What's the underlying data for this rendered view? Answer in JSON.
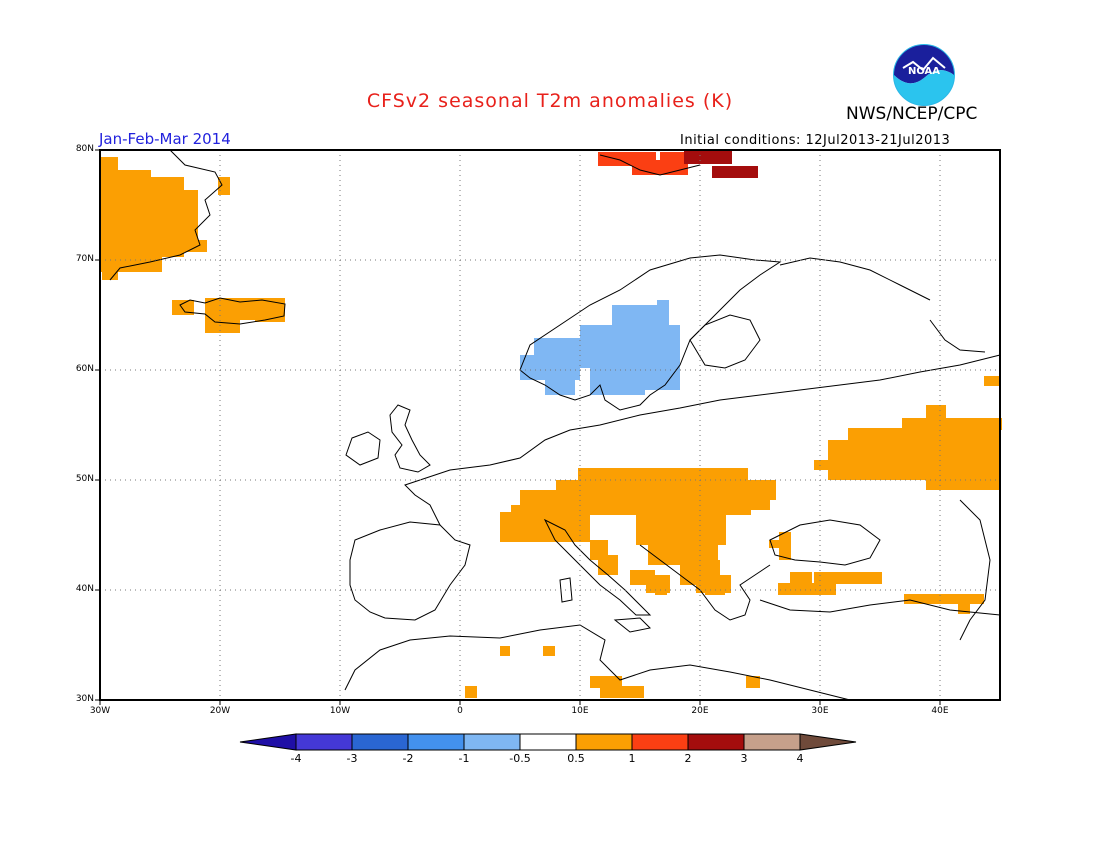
{
  "title": "CFSv2 seasonal T2m anomalies (K)",
  "agency": "NWS/NCEP/CPC",
  "logo_text": "NOAA",
  "period": "Jan-Feb-Mar 2014",
  "initial_conditions": "Initial conditions: 12Jul2013-21Jul2013",
  "map": {
    "lon_range": [
      -30,
      45
    ],
    "lat_range": [
      30,
      80
    ],
    "grid": true,
    "lat_labels": [
      "80N",
      "70N",
      "60N",
      "50N",
      "40N",
      "30N"
    ],
    "lon_labels": [
      "30W",
      "20W",
      "10W",
      "0",
      "10E",
      "20E",
      "30E",
      "40E"
    ],
    "cell_deg": 2.5
  },
  "colorbar": {
    "ticks": [
      "-4",
      "-3",
      "-2",
      "-1",
      "-0.5",
      "0.5",
      "1",
      "2",
      "3",
      "4"
    ],
    "colors": [
      "#1f0fa6",
      "#4438d6",
      "#2a66d2",
      "#4391ee",
      "#7fb7f3",
      "#ffffff",
      "#fb9f03",
      "#fb3f13",
      "#a40d0d",
      "#c6a08b",
      "#6f4a3a"
    ]
  },
  "anomaly_regions": [
    {
      "name": "Greenland east",
      "level": "0.5-1",
      "color": "#fb9f03"
    },
    {
      "name": "Iceland",
      "level": "0.5-1",
      "color": "#fb9f03"
    },
    {
      "name": "Svalbard",
      "level": "1-2",
      "color": "#fb3f13"
    },
    {
      "name": "Svalbard east",
      "level": "2-3",
      "color": "#a40d0d"
    },
    {
      "name": "Scandinavia",
      "level": "-1--0.5",
      "color": "#7fb7f3"
    },
    {
      "name": "Central Europe & Balkans",
      "level": "0.5-1",
      "color": "#fb9f03"
    },
    {
      "name": "Italy",
      "level": "0.5-1",
      "color": "#fb9f03"
    },
    {
      "name": "Western Russia",
      "level": "0.5-1",
      "color": "#fb9f03"
    },
    {
      "name": "Turkey",
      "level": "0.5-1",
      "color": "#fb9f03"
    },
    {
      "name": "North Africa",
      "level": "0.5-1",
      "color": "#fb9f03"
    }
  ]
}
